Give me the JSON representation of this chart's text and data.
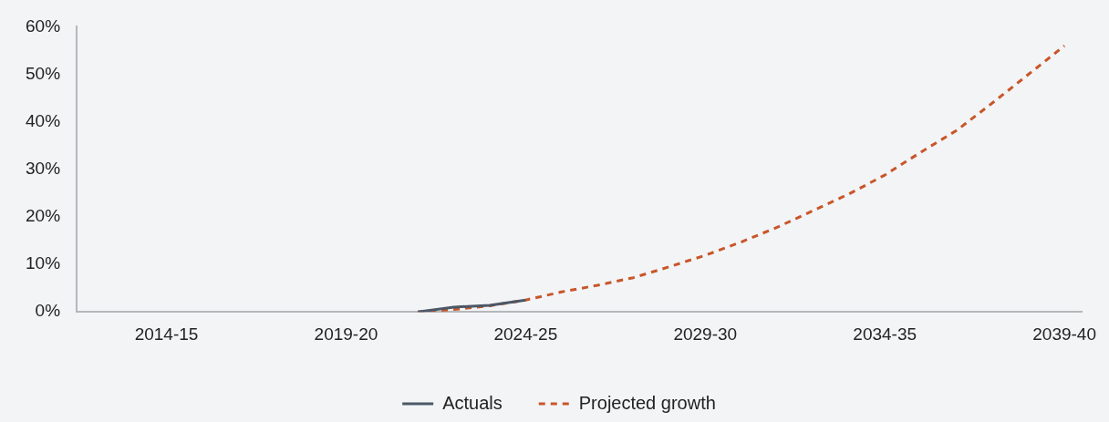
{
  "chart_data": {
    "type": "line",
    "categories": [
      null,
      null,
      "2014-15",
      null,
      null,
      null,
      null,
      "2019-20",
      null,
      null,
      null,
      null,
      "2024-25",
      null,
      null,
      null,
      null,
      "2029-30",
      null,
      null,
      null,
      null,
      "2034-35",
      null,
      null,
      null,
      null,
      "2039-40"
    ],
    "series": [
      {
        "name": "Actuals",
        "color": "#4b5867",
        "line_style": "solid",
        "values": [
          null,
          null,
          null,
          null,
          null,
          null,
          null,
          null,
          null,
          0,
          1.0,
          1.4,
          2.5,
          null,
          null,
          null,
          null,
          null,
          null,
          null,
          null,
          null,
          null,
          null,
          null,
          null,
          null,
          null
        ]
      },
      {
        "name": "Projected growth",
        "color": "#c8562a",
        "line_style": "dashed",
        "values": [
          null,
          null,
          null,
          null,
          null,
          null,
          null,
          null,
          null,
          0,
          0.5,
          1.3,
          2.5,
          4.2,
          5.6,
          7.2,
          9.5,
          11.9,
          14.7,
          17.8,
          21.3,
          24.8,
          28.8,
          33.6,
          38.2,
          44,
          50,
          56
        ]
      }
    ],
    "ylim": [
      0,
      60
    ],
    "yticks": [
      {
        "value": 0,
        "label": "0%"
      },
      {
        "value": 10,
        "label": "10%"
      },
      {
        "value": 20,
        "label": "20%"
      },
      {
        "value": 30,
        "label": "30%"
      },
      {
        "value": 40,
        "label": "40%"
      },
      {
        "value": 50,
        "label": "50%"
      },
      {
        "value": 60,
        "label": "60%"
      }
    ],
    "grid": false,
    "legend": "bottom",
    "marker": "none"
  }
}
